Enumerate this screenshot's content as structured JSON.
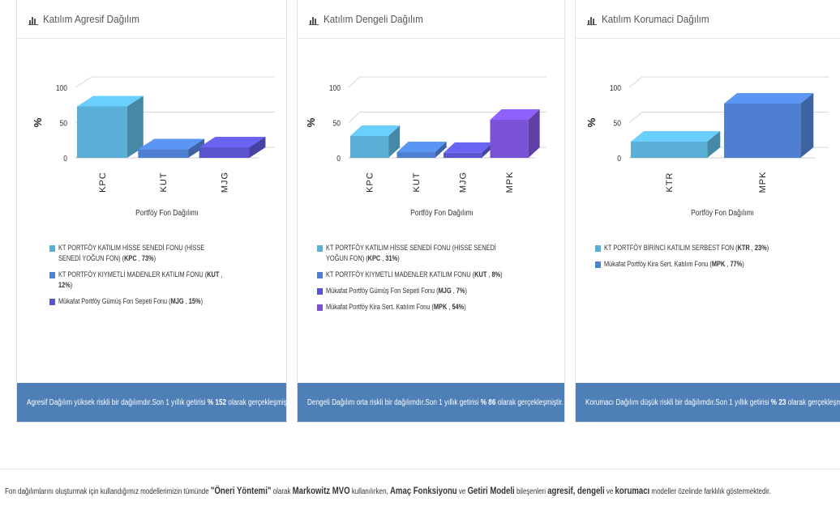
{
  "panels": [
    {
      "id": "agresif",
      "title": "Katılım Agresif Dağılım",
      "y_axis_label": "%",
      "x_axis_label": "Portföy Fon Dağılımı",
      "footer": {
        "text_before": "Agresif Dağılım yüksek riskli bir dağılımdır.Son 1 yıllık getirisi ",
        "value": "% 152",
        "text_after": " olarak gerçekleşmiştir."
      },
      "chart_data": {
        "type": "bar",
        "categories": [
          "KPC",
          "KUT",
          "MJG"
        ],
        "values": [
          73,
          12,
          15
        ],
        "colors": [
          "#5aafd6",
          "#4e7fd0",
          "#5a55cf"
        ],
        "yticks": [
          0,
          50,
          100
        ],
        "ylim": [
          0,
          100
        ],
        "ylabel": "%",
        "xlabel": "Portföy Fon Dağılımı"
      },
      "legend": [
        {
          "name": "KT PORTFÖY KATILIM HİSSE SENEDİ FONU (HİSSE SENEDİ YOĞUN FON)",
          "code": "KPC",
          "pct": "73%",
          "color": "#5aafd6"
        },
        {
          "name": "KT PORTFÖY KIYMETLİ MADENLER KATILIM FONU",
          "code": "KUT",
          "pct": "12%",
          "color": "#4e7fd0"
        },
        {
          "name": "Mükafat Portföy Gümüş Fon Sepeti Fonu",
          "code": "MJG",
          "pct": "15%",
          "color": "#5a55cf"
        }
      ]
    },
    {
      "id": "dengeli",
      "title": "Katılım Dengeli Dağılım",
      "y_axis_label": "%",
      "x_axis_label": "Portföy Fon Dağılımı",
      "footer": {
        "text_before": "Dengeli Dağılım orta riskli bir dağılımdır.Son 1 yıllık getirisi ",
        "value": "% 86",
        "text_after": " olarak gerçekleşmiştir."
      },
      "chart_data": {
        "type": "bar",
        "categories": [
          "KPC",
          "KUT",
          "MJG",
          "MPK"
        ],
        "values": [
          31,
          8,
          7,
          54
        ],
        "colors": [
          "#5aafd6",
          "#4e7fd0",
          "#5a55cf",
          "#7a52d6"
        ],
        "yticks": [
          0,
          50,
          100
        ],
        "ylim": [
          0,
          100
        ],
        "ylabel": "%",
        "xlabel": "Portföy Fon Dağılımı"
      },
      "legend": [
        {
          "name": "KT PORTFÖY KATILIM HİSSE SENEDİ FONU (HİSSE SENEDİ YOĞUN FON)",
          "code": "KPC",
          "pct": "31%",
          "color": "#5aafd6"
        },
        {
          "name": "KT PORTFÖY KIYMETLİ MADENLER KATILIM FONU",
          "code": "KUT",
          "pct": "8%",
          "color": "#4e7fd0"
        },
        {
          "name": "Mükafat Portföy Gümüş Fon Sepeti Fonu",
          "code": "MJG",
          "pct": "7%",
          "color": "#5a55cf"
        },
        {
          "name": "Mükafat Portföy Kira Sert. Katılım Fonu",
          "code": "MPK",
          "pct": "54%",
          "color": "#7a52d6"
        }
      ]
    },
    {
      "id": "korumaci",
      "title": "Katılım Korumaci Dağılım",
      "y_axis_label": "%",
      "x_axis_label": "Portföy Fon Dağılımı",
      "footer": {
        "text_before": "Korumacı Dağılım düşük riskli bir dağılımdır.Son 1 yıllık getirisi ",
        "value": "% 23",
        "text_after": " olarak gerçekleşmiştir."
      },
      "chart_data": {
        "type": "bar",
        "categories": [
          "KTR",
          "MPK"
        ],
        "values": [
          23,
          77
        ],
        "colors": [
          "#5aafd6",
          "#4e7fd0"
        ],
        "yticks": [
          0,
          50,
          100
        ],
        "ylim": [
          0,
          100
        ],
        "ylabel": "%",
        "xlabel": "Portföy Fon Dağılımı"
      },
      "legend": [
        {
          "name": "KT PORTFÖY BİRİNCİ KATILIM SERBEST FON",
          "code": "KTR",
          "pct": "23%",
          "color": "#5aafd6"
        },
        {
          "name": "Mükafat Portföy Kira Sert. Katılım Fonu",
          "code": "MPK",
          "pct": "77%",
          "color": "#4e7fd0"
        }
      ]
    }
  ],
  "note": {
    "t1": "Fon dağılımlarını oluşturmak için kullandığımız modellerimizin tümünde ",
    "b1": "\"Öneri Yöntemi\"",
    "t2": " olarak ",
    "b2": "Markowitz MVO",
    "t3": " kullanılırken, ",
    "b3": "Amaç Fonksiyonu",
    "t4": " ve ",
    "b4": "Getiri Modeli",
    "t5": " bileşenleri ",
    "b5": "agresif, dengeli",
    "t6": " ve ",
    "b6": "korumacı",
    "t7": " modeller özelinde farklılık göstermektedir."
  }
}
